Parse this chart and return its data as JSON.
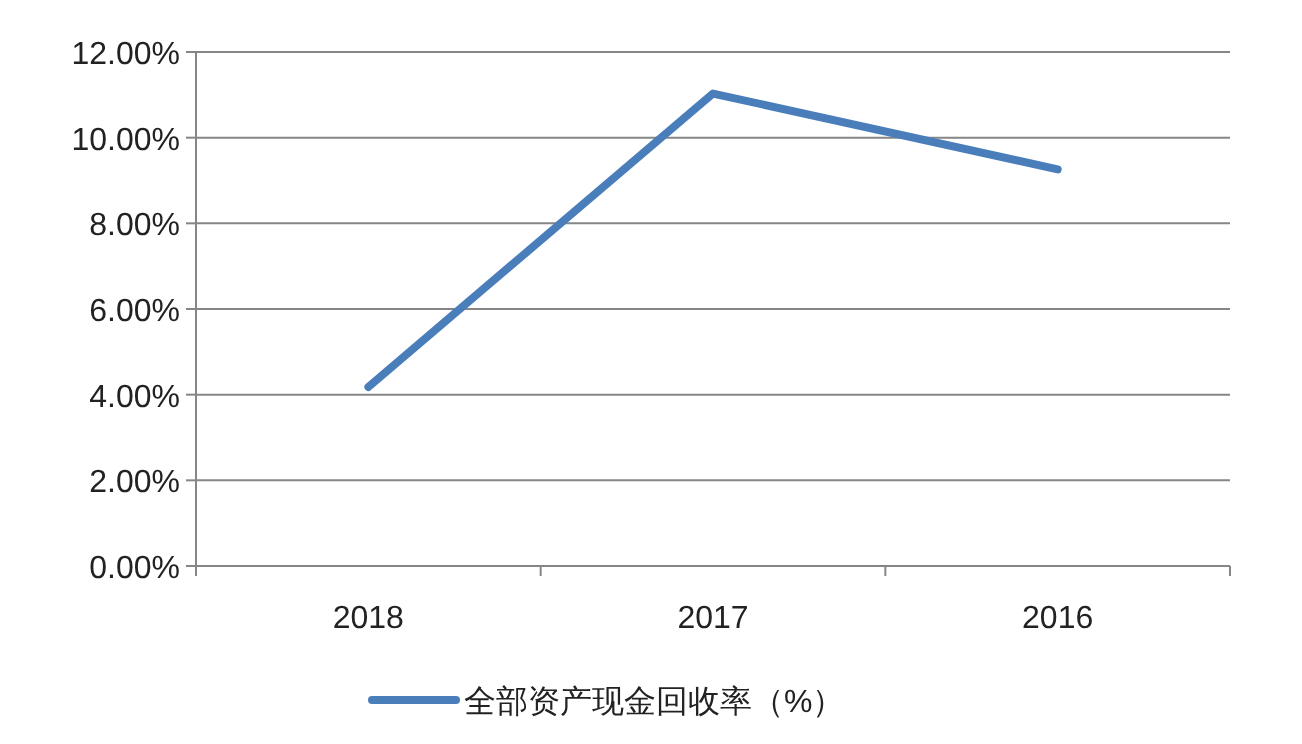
{
  "chart_data": {
    "type": "line",
    "categories": [
      "2018",
      "2017",
      "2016"
    ],
    "series": [
      {
        "name": "全部资产现金回收率（%）",
        "color": "#4a7ebb",
        "values": [
          4.18,
          11.03,
          9.26
        ]
      }
    ],
    "ylim": [
      0,
      12
    ],
    "yticks": [
      {
        "value": 0,
        "label": "0.00%"
      },
      {
        "value": 2,
        "label": "2.00%"
      },
      {
        "value": 4,
        "label": "4.00%"
      },
      {
        "value": 6,
        "label": "6.00%"
      },
      {
        "value": 8,
        "label": "8.00%"
      },
      {
        "value": 10,
        "label": "10.00%"
      },
      {
        "value": 12,
        "label": "12.00%"
      }
    ],
    "grid": "y",
    "legend": "bottom",
    "marker": "none",
    "line_style": "solid"
  }
}
